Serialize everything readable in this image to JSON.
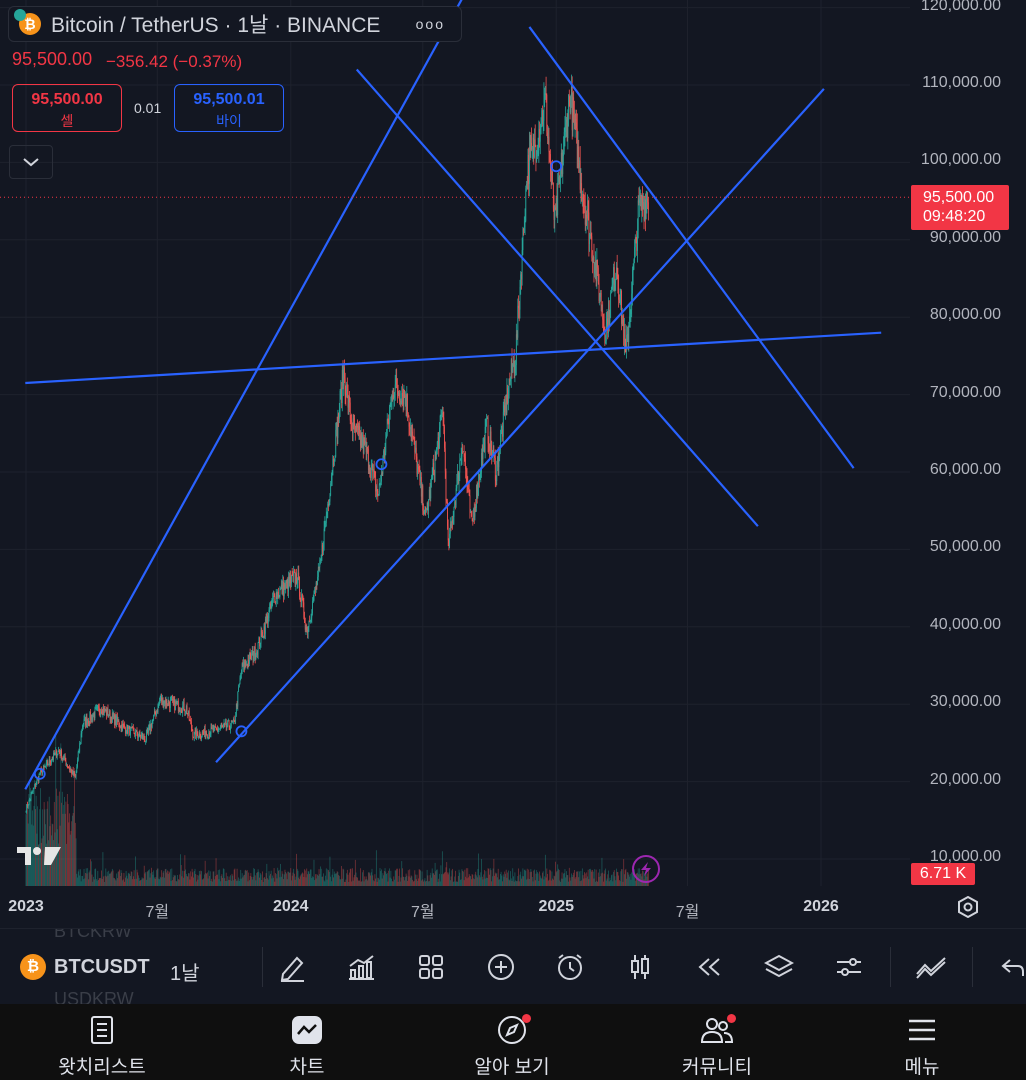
{
  "header": {
    "symbol_title": "Bitcoin / TetherUS · 1날 · BINANCE",
    "more": "ooo",
    "last_price": "95,500.00",
    "change": "−356.42 (−0.37%)",
    "sell_price": "95,500.00",
    "sell_label": "셀",
    "spread": "0.01",
    "buy_price": "95,500.01",
    "buy_label": "바이"
  },
  "price_tag": {
    "price": "95,500.00",
    "countdown": "09:48:20"
  },
  "volume_tag": "6.71 K",
  "colors": {
    "up": "#26a69a",
    "down": "#ef5350",
    "trendline": "#2962ff",
    "price_line": "#f23645",
    "background": "#131722"
  },
  "chart_data": {
    "type": "candlestick",
    "symbol": "BTCUSDT",
    "interval": "1날",
    "y_ticks": [
      "120,000.00",
      "110,000.00",
      "100,000.00",
      "90,000.00",
      "80,000.00",
      "70,000.00",
      "60,000.00",
      "50,000.00",
      "40,000.00",
      "30,000.00",
      "20,000.00",
      "10,000.00"
    ],
    "x_ticks": [
      "2023",
      "7월",
      "2024",
      "7월",
      "2025",
      "7월",
      "2026"
    ],
    "ylim": [
      10000,
      120000
    ],
    "current_price": 95500,
    "price_path": [
      [
        "2023-01-01",
        16500
      ],
      [
        "2023-01-20",
        21000
      ],
      [
        "2023-02-15",
        24000
      ],
      [
        "2023-03-10",
        20500
      ],
      [
        "2023-03-20",
        27500
      ],
      [
        "2023-04-15",
        29500
      ],
      [
        "2023-05-15",
        27000
      ],
      [
        "2023-06-15",
        25500
      ],
      [
        "2023-07-05",
        30500
      ],
      [
        "2023-08-10",
        29500
      ],
      [
        "2023-08-20",
        26000
      ],
      [
        "2023-09-15",
        26500
      ],
      [
        "2023-10-15",
        27500
      ],
      [
        "2023-10-25",
        34500
      ],
      [
        "2023-11-15",
        37000
      ],
      [
        "2023-12-10",
        44000
      ],
      [
        "2024-01-10",
        46500
      ],
      [
        "2024-01-23",
        39500
      ],
      [
        "2024-02-10",
        47500
      ],
      [
        "2024-02-29",
        62000
      ],
      [
        "2024-03-14",
        73000
      ],
      [
        "2024-03-25",
        66000
      ],
      [
        "2024-04-13",
        63000
      ],
      [
        "2024-05-01",
        57000
      ],
      [
        "2024-05-21",
        71000
      ],
      [
        "2024-06-07",
        70000
      ],
      [
        "2024-07-05",
        54000
      ],
      [
        "2024-07-29",
        68000
      ],
      [
        "2024-08-05",
        50000
      ],
      [
        "2024-08-25",
        64000
      ],
      [
        "2024-09-06",
        53000
      ],
      [
        "2024-09-27",
        66000
      ],
      [
        "2024-10-10",
        60000
      ],
      [
        "2024-10-29",
        72000
      ],
      [
        "2024-11-06",
        75000
      ],
      [
        "2024-11-22",
        99000
      ],
      [
        "2024-12-05",
        103000
      ],
      [
        "2024-12-17",
        108000
      ],
      [
        "2024-12-30",
        92000
      ],
      [
        "2025-01-20",
        109000
      ],
      [
        "2025-02-05",
        97000
      ],
      [
        "2025-02-25",
        86000
      ],
      [
        "2025-03-10",
        78000
      ],
      [
        "2025-03-25",
        87000
      ],
      [
        "2025-04-07",
        75000
      ],
      [
        "2025-04-25",
        94000
      ],
      [
        "2025-05-08",
        95500
      ]
    ],
    "trendlines": [
      [
        [
          "2022-12-31",
          19000
        ],
        [
          "2024-09-10",
          124000
        ]
      ],
      [
        [
          "2023-09-20",
          22500
        ],
        [
          "2026-01-05",
          109500
        ]
      ],
      [
        [
          "2022-12-31",
          71500
        ],
        [
          "2026-03-25",
          78000
        ]
      ],
      [
        [
          "2024-04-01",
          112000
        ],
        [
          "2025-10-06",
          53000
        ]
      ],
      [
        [
          "2024-11-25",
          117500
        ],
        [
          "2026-02-15",
          60500
        ]
      ]
    ],
    "markers": [
      [
        "2023-01-20",
        21000
      ],
      [
        "2023-10-25",
        26500
      ],
      [
        "2024-05-05",
        61000
      ],
      [
        "2025-01-01",
        99500
      ]
    ]
  },
  "toolbar": {
    "symbol": "BTCUSDT",
    "interval": "1날",
    "ghost_above": "BTCKRW",
    "ghost_below": "USDKRW"
  },
  "bottom_nav": {
    "watchlist": "왓치리스트",
    "chart": "차트",
    "explore": "알아 보기",
    "community": "커뮤니티",
    "menu": "메뉴"
  }
}
